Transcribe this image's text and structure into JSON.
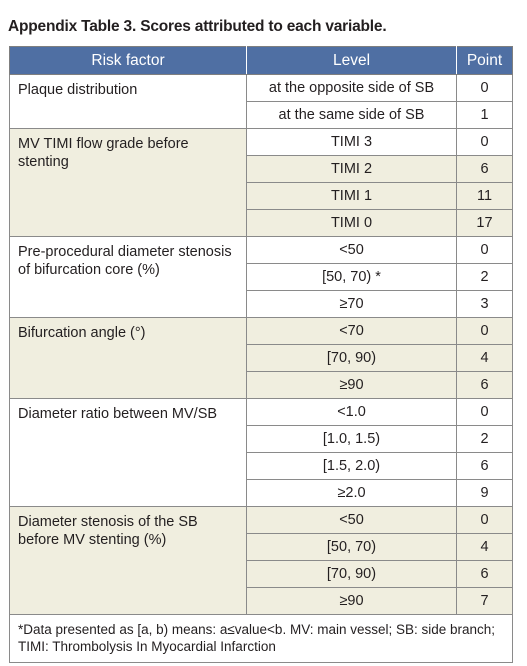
{
  "caption": "Appendix Table 3. Scores attributed to each variable.",
  "headers": {
    "risk_factor": "Risk factor",
    "level": "Level",
    "point": "Point"
  },
  "groups": [
    {
      "factor": "Plaque distribution",
      "rows": [
        {
          "level": "at the opposite side of SB",
          "point": "0"
        },
        {
          "level": "at the same side of SB",
          "point": "1"
        }
      ]
    },
    {
      "factor": "MV TIMI flow grade before stenting",
      "rows": [
        {
          "level": "TIMI 3",
          "point": "0"
        },
        {
          "level": "TIMI 2",
          "point": "6"
        },
        {
          "level": "TIMI 1",
          "point": "11"
        },
        {
          "level": "TIMI 0",
          "point": "17"
        }
      ]
    },
    {
      "factor": "Pre-procedural diameter stenosis of bifurcation core (%)",
      "rows": [
        {
          "level": "<50",
          "point": "0"
        },
        {
          "level": "[50, 70) *",
          "point": "2"
        },
        {
          "level": "≥70",
          "point": "3"
        }
      ]
    },
    {
      "factor": "Bifurcation angle (°)",
      "rows": [
        {
          "level": "<70",
          "point": "0"
        },
        {
          "level": "[70, 90)",
          "point": "4"
        },
        {
          "level": "≥90",
          "point": "6"
        }
      ]
    },
    {
      "factor": "Diameter ratio between MV/SB",
      "rows": [
        {
          "level": "<1.0",
          "point": "0"
        },
        {
          "level": "[1.0, 1.5)",
          "point": "2"
        },
        {
          "level": "[1.5, 2.0)",
          "point": "6"
        },
        {
          "level": "≥2.0",
          "point": "9"
        }
      ]
    },
    {
      "factor": "Diameter stenosis of the SB before MV stenting (%)",
      "rows": [
        {
          "level": "<50",
          "point": "0"
        },
        {
          "level": "[50, 70)",
          "point": "4"
        },
        {
          "level": "[70, 90)",
          "point": "6"
        },
        {
          "level": "≥90",
          "point": "7"
        }
      ]
    }
  ],
  "footnote": "*Data presented as [a, b) means: a≤value<b. MV: main vessel; SB: side branch; TIMI: Thrombolysis In Myocardial Infarction",
  "colors": {
    "header_bg": "#4f6fa3",
    "shaded_row_bg": "#f0eedf",
    "text": "#231f20"
  }
}
